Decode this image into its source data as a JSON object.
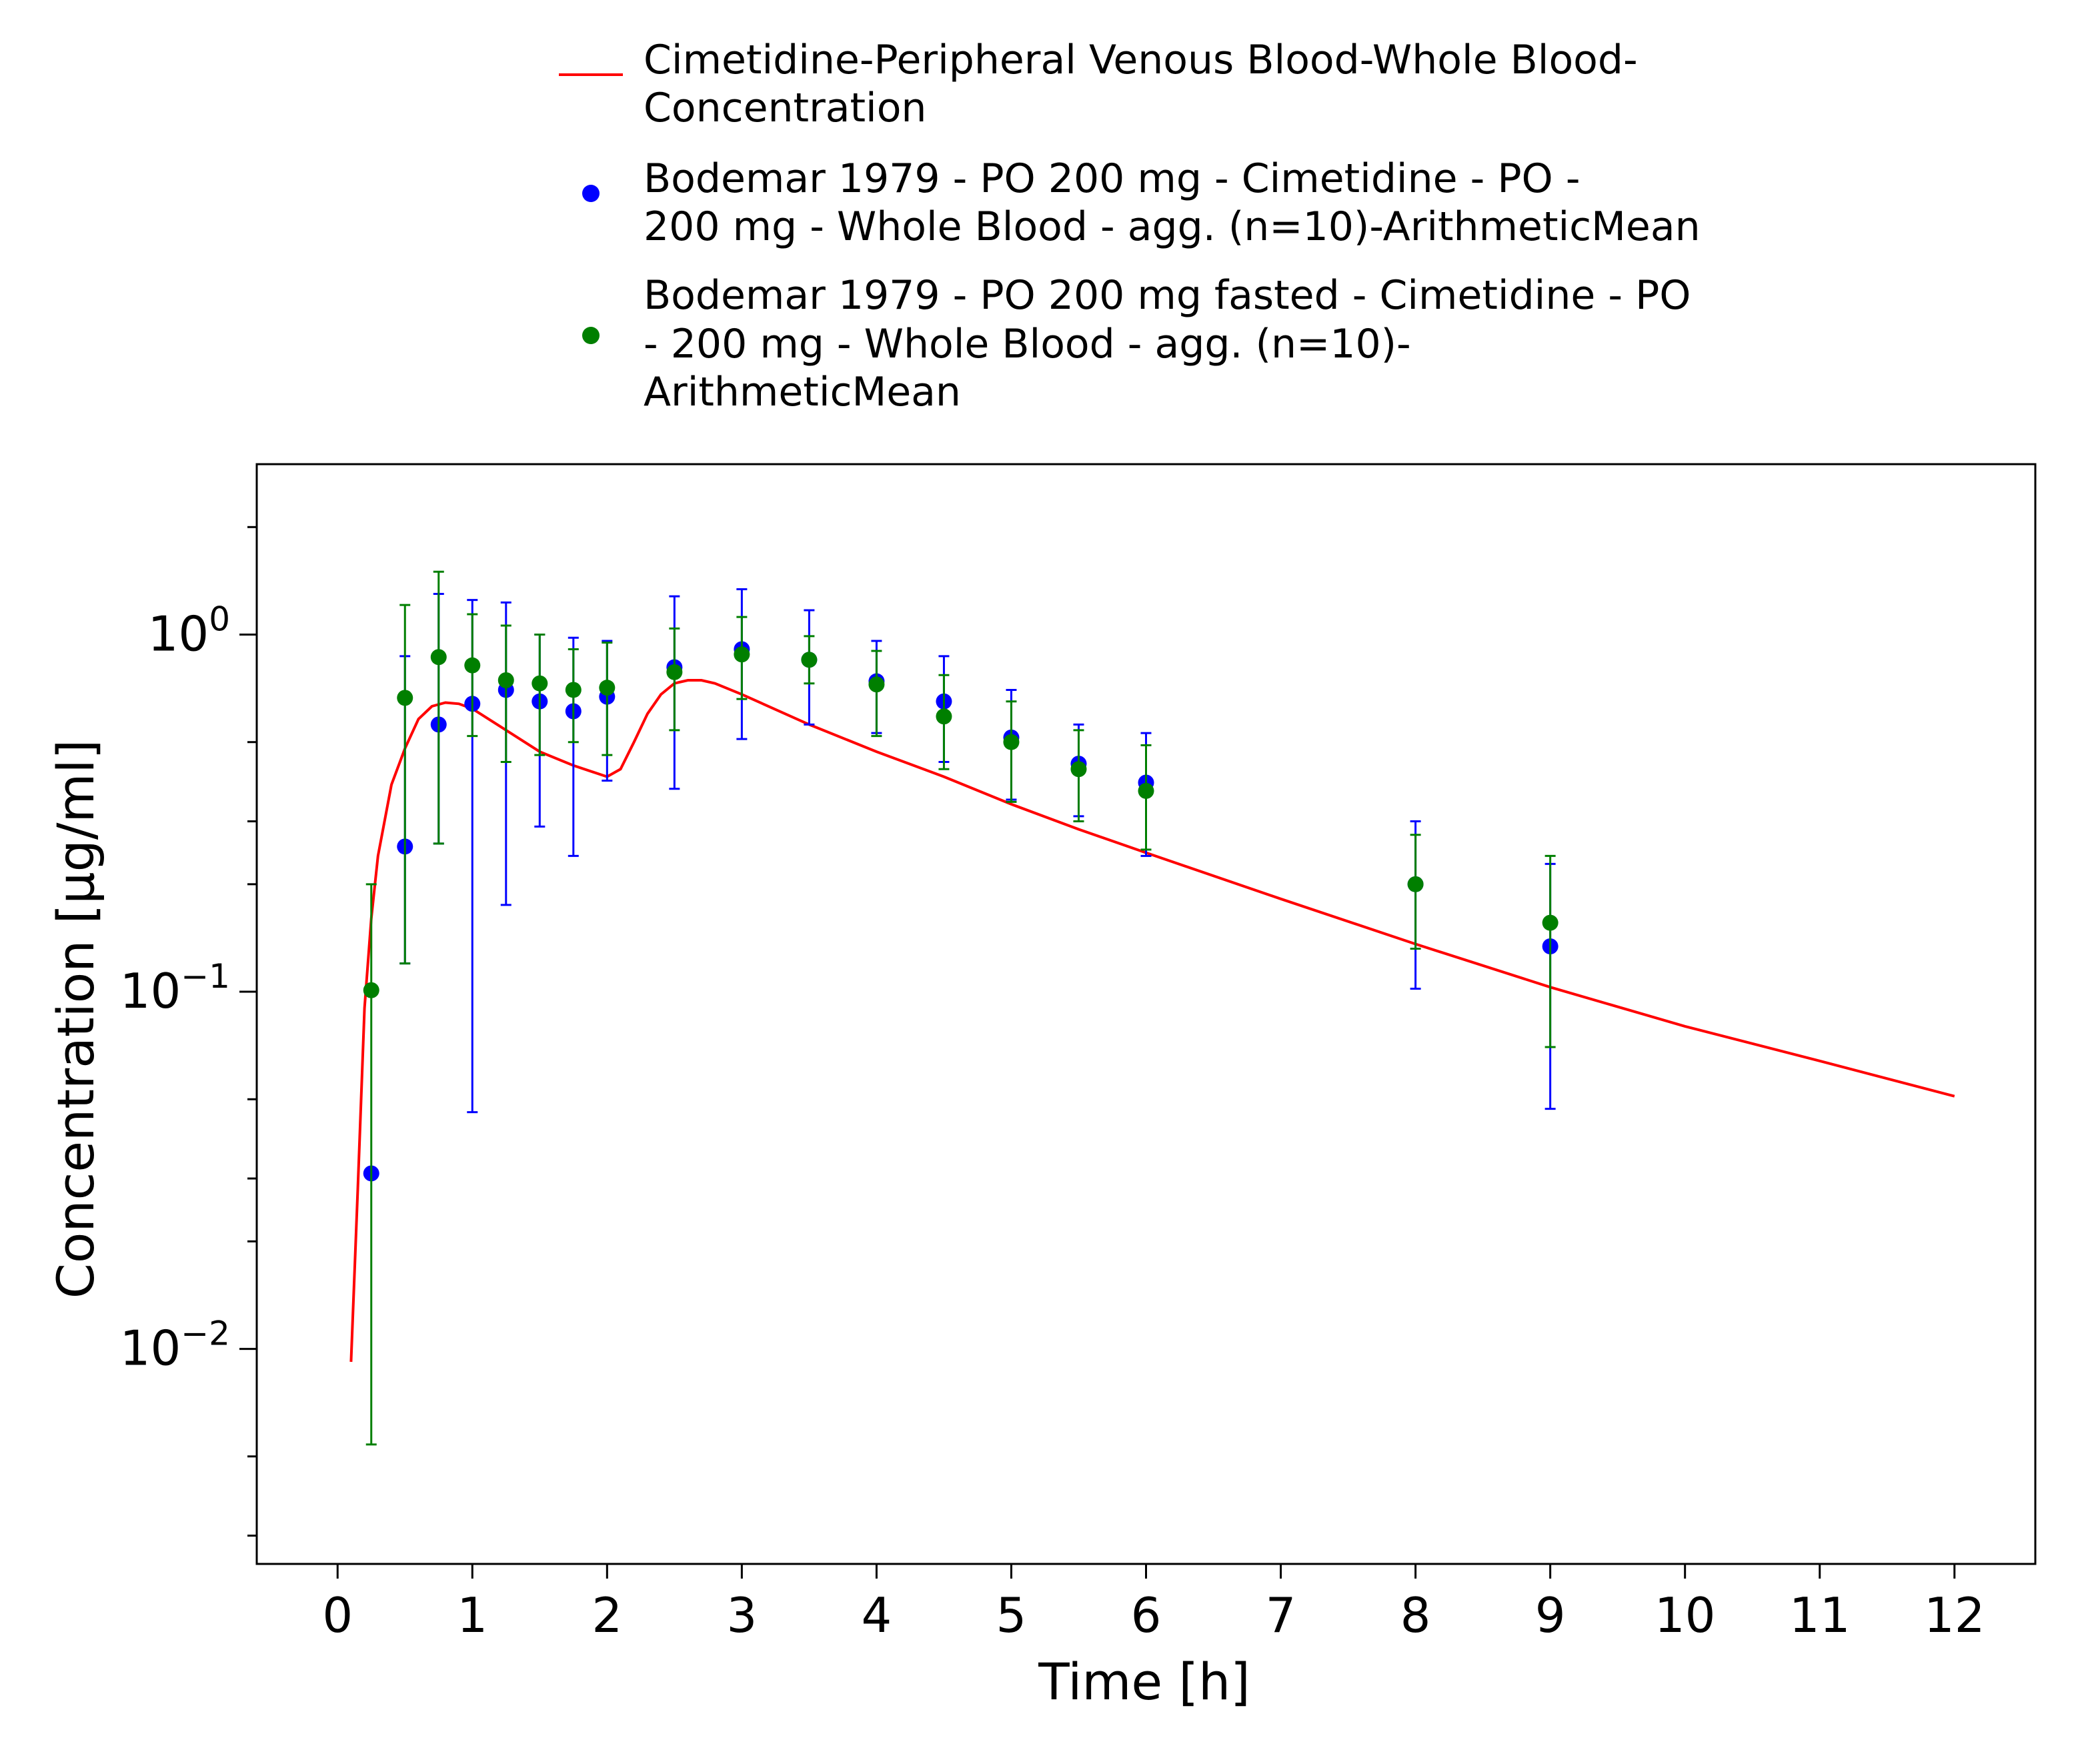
{
  "chart_data": {
    "type": "scatter",
    "x_axis": {
      "label": "Time [h]",
      "range": [
        -0.6,
        12.6
      ],
      "ticks": [
        0,
        1,
        2,
        3,
        4,
        5,
        6,
        7,
        8,
        9,
        10,
        11,
        12
      ],
      "tick_labels": [
        "0",
        "1",
        "2",
        "3",
        "4",
        "5",
        "6",
        "7",
        "8",
        "9",
        "10",
        "11",
        "12"
      ]
    },
    "y_axis": {
      "label": "Concentration [µg/ml]",
      "scale": "log",
      "range": [
        0.0025,
        3.0
      ],
      "major_ticks": [
        {
          "value": 0.01,
          "base": "10",
          "exponent": "−2"
        },
        {
          "value": 0.1,
          "base": "10",
          "exponent": "−1"
        },
        {
          "value": 1,
          "base": "10",
          "exponent": "0"
        }
      ],
      "minor_ticks": [
        0.003,
        0.005,
        0.02,
        0.03,
        0.05,
        0.2,
        0.3,
        0.5,
        2.0
      ]
    },
    "grid": false,
    "legend_position": "top",
    "series": [
      {
        "name": "Cimetidine-Peripheral Venous Blood-Whole Blood-Concentration",
        "legend_lines": [
          "Cimetidine-Peripheral Venous Blood-Whole Blood-",
          "Concentration"
        ],
        "kind": "line",
        "color": "#ff0000",
        "x": [
          0.1,
          0.15,
          0.2,
          0.25,
          0.3,
          0.4,
          0.5,
          0.6,
          0.7,
          0.8,
          0.9,
          1.0,
          1.25,
          1.5,
          1.75,
          2.0,
          2.1,
          2.2,
          2.3,
          2.4,
          2.5,
          2.6,
          2.7,
          2.8,
          3.0,
          3.5,
          4.0,
          4.5,
          5.0,
          5.5,
          6.0,
          7.0,
          8.0,
          9.0,
          10.0,
          11.0,
          12.0
        ],
        "y": [
          0.0092,
          0.028,
          0.09,
          0.16,
          0.24,
          0.38,
          0.48,
          0.58,
          0.63,
          0.645,
          0.64,
          0.62,
          0.54,
          0.47,
          0.43,
          0.4,
          0.42,
          0.5,
          0.6,
          0.68,
          0.73,
          0.745,
          0.745,
          0.73,
          0.68,
          0.56,
          0.47,
          0.4,
          0.335,
          0.285,
          0.245,
          0.182,
          0.136,
          0.103,
          0.08,
          0.064,
          0.051
        ]
      },
      {
        "name": "Bodemar 1979 - PO 200 mg - Cimetidine - PO - 200 mg - Whole Blood - agg. (n=10)-ArithmeticMean",
        "legend_lines": [
          "Bodemar 1979 - PO 200 mg - Cimetidine - PO -",
          "200 mg - Whole Blood - agg. (n=10)-ArithmeticMean"
        ],
        "kind": "points",
        "color": "#0000ff",
        "x": [
          0.25,
          0.5,
          0.75,
          1.0,
          1.25,
          1.5,
          1.75,
          2.0,
          2.5,
          3.0,
          3.5,
          4.0,
          4.5,
          5.0,
          5.5,
          6.0,
          8.0,
          9.0
        ],
        "y": [
          0.031,
          0.255,
          0.56,
          0.64,
          0.7,
          0.65,
          0.61,
          0.67,
          0.81,
          0.91,
          0.85,
          0.74,
          0.65,
          0.515,
          0.435,
          0.385,
          0.2,
          0.134
        ],
        "y_lower": [
          0.031,
          0.12,
          0.26,
          0.046,
          0.175,
          0.29,
          0.24,
          0.39,
          0.37,
          0.51,
          0.56,
          0.53,
          0.44,
          0.345,
          0.31,
          0.24,
          0.102,
          0.047
        ],
        "y_upper": [
          0.031,
          0.87,
          1.3,
          1.25,
          1.23,
          1.0,
          0.98,
          0.96,
          1.28,
          1.34,
          1.17,
          0.96,
          0.87,
          0.7,
          0.56,
          0.53,
          0.3,
          0.228
        ]
      },
      {
        "name": "Bodemar 1979 - PO 200 mg fasted - Cimetidine - PO - 200 mg - Whole Blood - agg. (n=10)-ArithmeticMean",
        "legend_lines": [
          "Bodemar 1979 - PO 200 mg fasted - Cimetidine - PO",
          "- 200 mg - Whole Blood - agg. (n=10)-",
          "ArithmeticMean"
        ],
        "kind": "points",
        "color": "#007f00",
        "x": [
          0.25,
          0.5,
          0.75,
          1.0,
          1.25,
          1.5,
          1.75,
          2.0,
          2.5,
          3.0,
          3.5,
          4.0,
          4.5,
          5.0,
          5.5,
          6.0,
          8.0,
          9.0
        ],
        "y": [
          0.101,
          0.665,
          0.865,
          0.82,
          0.745,
          0.73,
          0.7,
          0.71,
          0.785,
          0.88,
          0.85,
          0.725,
          0.59,
          0.5,
          0.42,
          0.365,
          0.2,
          0.156
        ],
        "y_lower": [
          0.0054,
          0.12,
          0.26,
          0.52,
          0.44,
          0.46,
          0.5,
          0.46,
          0.54,
          0.66,
          0.73,
          0.52,
          0.42,
          0.34,
          0.3,
          0.25,
          0.132,
          0.07
        ],
        "y_upper": [
          0.2,
          1.21,
          1.5,
          1.14,
          1.06,
          1.0,
          0.91,
          0.95,
          1.04,
          1.12,
          0.99,
          0.9,
          0.77,
          0.65,
          0.54,
          0.49,
          0.275,
          0.24
        ]
      }
    ]
  }
}
